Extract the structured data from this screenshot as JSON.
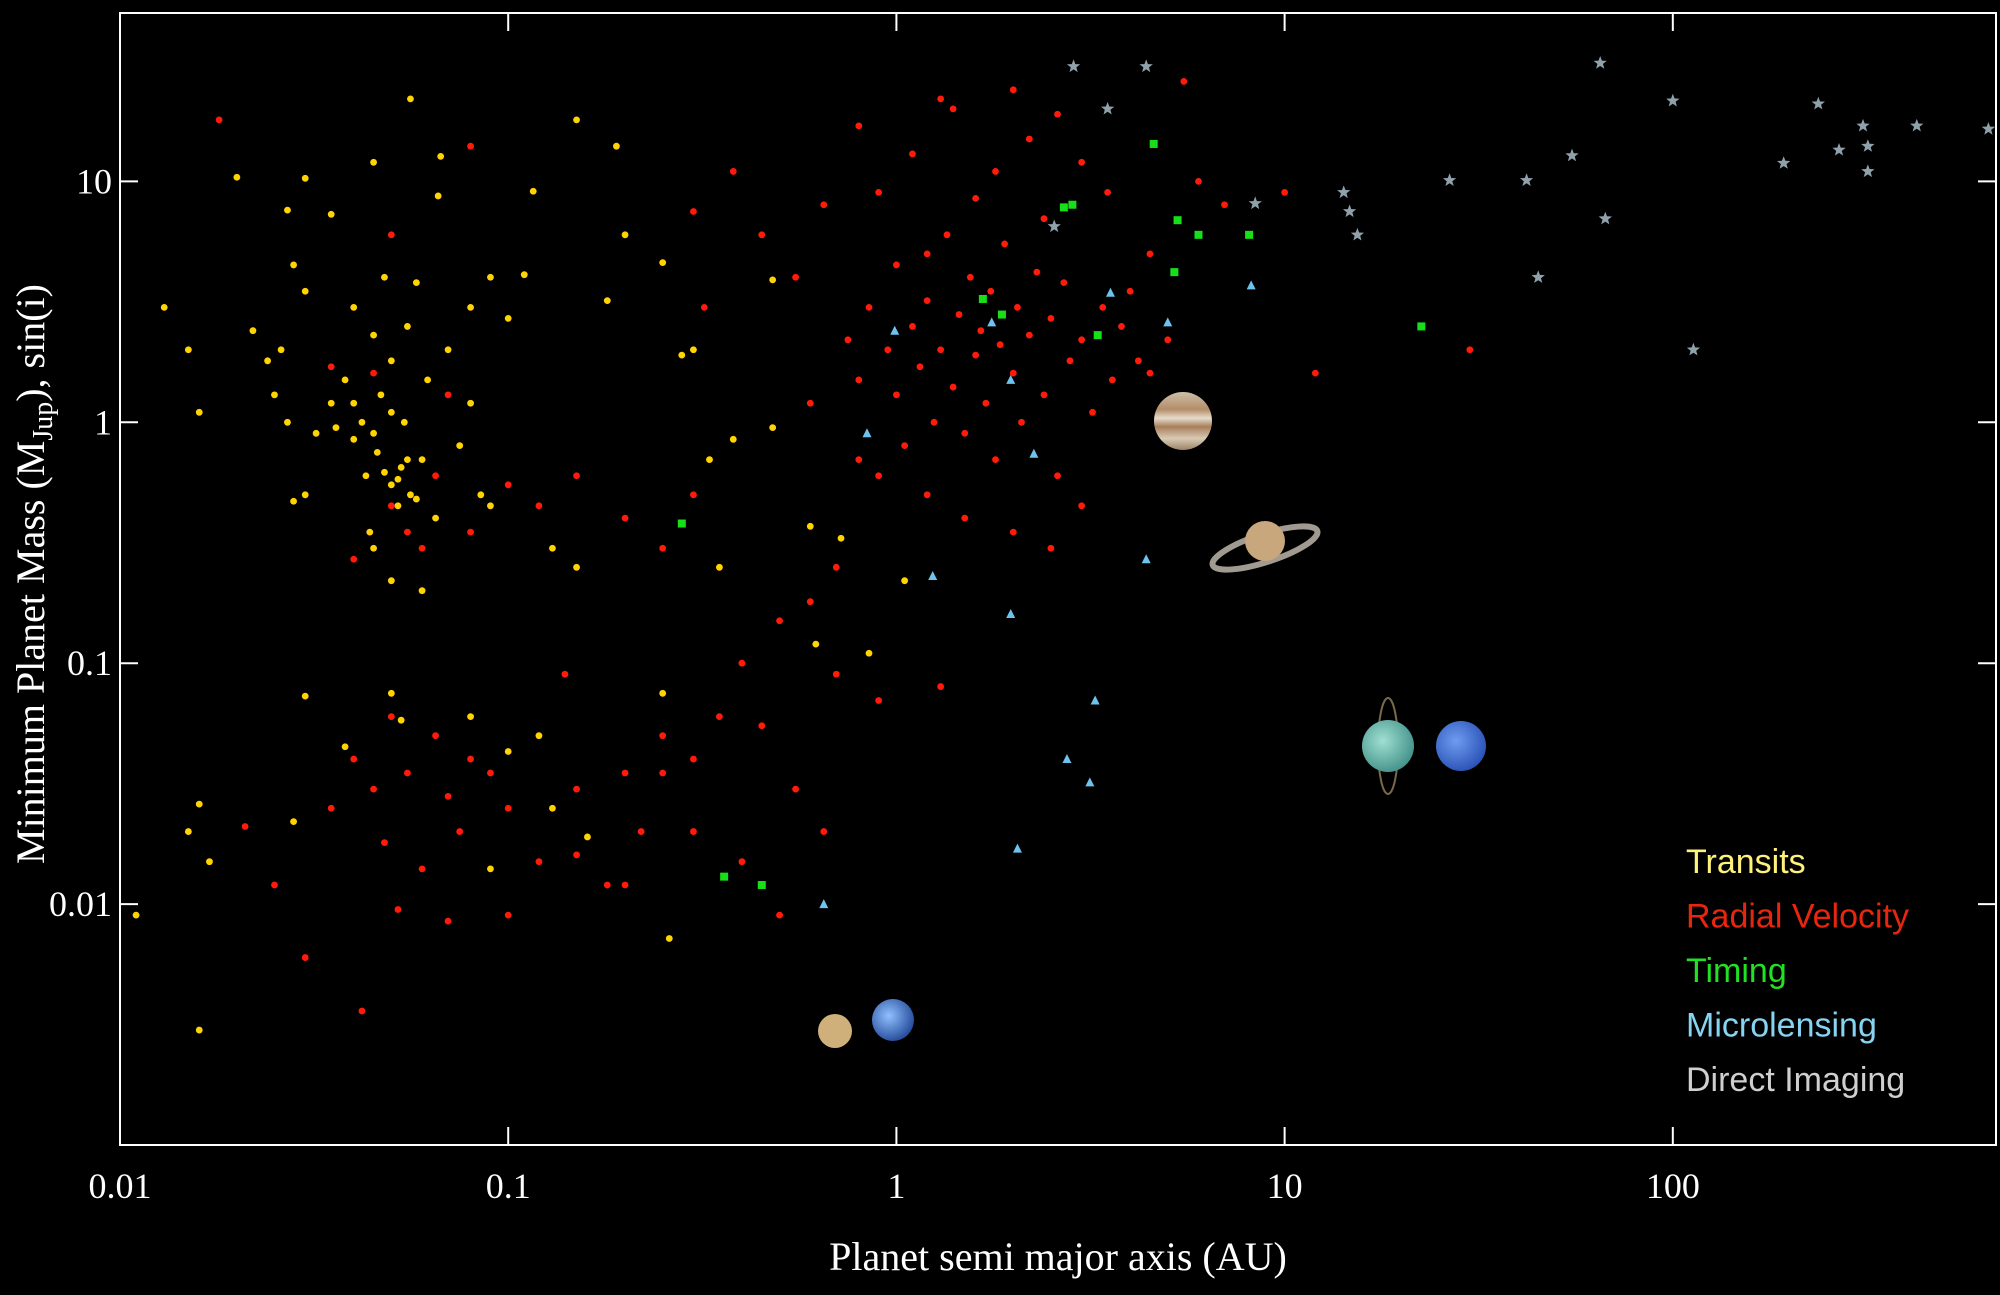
{
  "chart_data": {
    "type": "scatter",
    "xlabel": "Planet semi major axis (AU)",
    "ylabel": [
      "Minimum Planet Mass (M",
      "Jup",
      "),  sin(i)"
    ],
    "xscale": "log",
    "yscale": "log",
    "xlim": [
      0.01,
      680
    ],
    "ylim": [
      0.001,
      50
    ],
    "xticks": [
      0.01,
      0.1,
      1,
      10,
      100
    ],
    "yticks": [
      0.01,
      0.1,
      1,
      10
    ],
    "legend": "lower right",
    "series": [
      {
        "name": "Transits",
        "color": "#ffd400",
        "legend_color": "#fff27a",
        "marker": "circle",
        "x": [
          0.013,
          0.015,
          0.016,
          0.02,
          0.03,
          0.035,
          0.027,
          0.056,
          0.045,
          0.067,
          0.15,
          0.19,
          0.116,
          0.066,
          0.022,
          0.024,
          0.025,
          0.026,
          0.027,
          0.028,
          0.03,
          0.032,
          0.035,
          0.038,
          0.04,
          0.04,
          0.042,
          0.043,
          0.045,
          0.046,
          0.047,
          0.048,
          0.05,
          0.05,
          0.052,
          0.053,
          0.054,
          0.055,
          0.056,
          0.058,
          0.06,
          0.062,
          0.065,
          0.07,
          0.075,
          0.08,
          0.085,
          0.09,
          0.1,
          0.11,
          0.045,
          0.05,
          0.06,
          0.044,
          0.028,
          0.03,
          0.08,
          0.09,
          0.048,
          0.052,
          0.055,
          0.045,
          0.04,
          0.036,
          0.05,
          0.058,
          0.011,
          0.016,
          0.017,
          0.016,
          0.015,
          0.03,
          0.028,
          0.038,
          0.05,
          0.053,
          0.08,
          0.09,
          0.1,
          0.12,
          0.13,
          0.16,
          0.25,
          0.26,
          0.15,
          0.13,
          0.28,
          0.33,
          0.38,
          0.48,
          0.48,
          0.6,
          0.62,
          0.85,
          1.05,
          0.72,
          0.2,
          0.25,
          0.18,
          0.3,
          0.35
        ],
        "values": [
          3.0,
          2.0,
          1.1,
          10.4,
          10.3,
          7.3,
          7.6,
          22,
          12,
          12.7,
          18,
          14,
          9.1,
          8.7,
          2.4,
          1.8,
          1.3,
          2.0,
          1.0,
          4.5,
          3.5,
          0.9,
          1.2,
          1.5,
          0.85,
          3.0,
          1.0,
          0.6,
          2.3,
          0.75,
          1.3,
          4.0,
          0.55,
          1.8,
          0.45,
          0.65,
          1.0,
          2.5,
          0.5,
          3.8,
          0.7,
          1.5,
          0.4,
          2.0,
          0.8,
          1.2,
          0.5,
          0.45,
          2.7,
          4.1,
          0.3,
          0.22,
          0.2,
          0.35,
          0.47,
          0.5,
          3.0,
          4.0,
          0.62,
          0.58,
          0.7,
          0.9,
          1.2,
          0.95,
          1.1,
          0.48,
          0.009,
          0.026,
          0.015,
          0.003,
          0.02,
          0.073,
          0.022,
          0.045,
          0.075,
          0.058,
          0.06,
          0.014,
          0.043,
          0.05,
          0.025,
          0.019,
          0.075,
          0.0072,
          0.25,
          0.3,
          1.9,
          0.7,
          0.85,
          0.95,
          3.9,
          0.37,
          0.12,
          0.11,
          0.22,
          0.33,
          6,
          4.6,
          3.2,
          2.0,
          0.25
        ]
      },
      {
        "name": "Radial Velocity",
        "color": "#ff1a0a",
        "legend_color": "#e8260f",
        "marker": "circle",
        "x": [
          0.018,
          0.05,
          0.08,
          0.3,
          0.32,
          0.38,
          0.45,
          0.55,
          0.6,
          0.65,
          0.8,
          0.9,
          1.1,
          1.2,
          1.3,
          1.4,
          1.6,
          1.8,
          2.0,
          2.2,
          2.4,
          2.6,
          3.0,
          3.5,
          4.0,
          4.5,
          5.5,
          6,
          7,
          10,
          12,
          30,
          0.75,
          0.8,
          0.85,
          0.9,
          0.95,
          1.0,
          1.0,
          1.05,
          1.1,
          1.15,
          1.2,
          1.25,
          1.3,
          1.35,
          1.4,
          1.45,
          1.5,
          1.55,
          1.6,
          1.65,
          1.7,
          1.75,
          1.8,
          1.85,
          1.9,
          2.0,
          2.05,
          2.1,
          2.2,
          2.3,
          2.4,
          2.5,
          2.6,
          2.7,
          2.8,
          3.0,
          3.2,
          3.4,
          3.6,
          3.8,
          4.2,
          4.5,
          5,
          3.0,
          2.5,
          2.0,
          1.5,
          1.2,
          0.8,
          0.7,
          0.6,
          0.5,
          0.4,
          0.35,
          0.3,
          0.25,
          0.22,
          0.2,
          0.18,
          0.15,
          0.14,
          0.12,
          0.1,
          0.09,
          0.08,
          0.075,
          0.07,
          0.065,
          0.06,
          0.055,
          0.052,
          0.05,
          0.048,
          0.045,
          0.04,
          0.035,
          0.03,
          0.025,
          0.021,
          0.042,
          0.07,
          0.1,
          0.15,
          0.2,
          0.25,
          0.3,
          0.4,
          0.5,
          0.65,
          0.45,
          0.55,
          0.7,
          0.9,
          1.3,
          0.12,
          0.15,
          0.2,
          0.25,
          0.3,
          0.1,
          0.08,
          0.06,
          0.05,
          0.04,
          0.065,
          0.07,
          0.045,
          0.035,
          0.055
        ],
        "values": [
          18,
          6,
          14,
          7.5,
          3,
          11,
          6,
          4,
          1.2,
          8,
          17,
          9,
          13,
          5,
          22,
          20,
          8.5,
          11,
          24,
          15,
          7,
          19,
          12,
          9,
          3.5,
          5,
          26,
          10,
          8,
          9,
          1.6,
          2,
          2.2,
          1.5,
          3.0,
          0.6,
          2.0,
          1.3,
          4.5,
          0.8,
          2.5,
          1.7,
          3.2,
          1.0,
          2.0,
          6,
          1.4,
          2.8,
          0.9,
          4,
          1.9,
          2.4,
          1.2,
          3.5,
          0.7,
          2.1,
          5.5,
          1.6,
          3.0,
          1.0,
          2.3,
          4.2,
          1.3,
          2.7,
          0.6,
          3.8,
          1.8,
          2.2,
          1.1,
          3.0,
          1.5,
          2.5,
          1.8,
          1.6,
          2.2,
          0.45,
          0.3,
          0.35,
          0.4,
          0.5,
          0.7,
          0.25,
          0.18,
          0.15,
          0.1,
          0.06,
          0.04,
          0.05,
          0.02,
          0.035,
          0.012,
          0.03,
          0.09,
          0.015,
          0.025,
          0.035,
          0.04,
          0.02,
          0.028,
          0.05,
          0.014,
          0.035,
          0.0095,
          0.06,
          0.018,
          0.03,
          0.04,
          0.025,
          0.006,
          0.012,
          0.021,
          0.0036,
          0.0085,
          0.009,
          0.016,
          0.012,
          0.035,
          0.02,
          0.015,
          0.009,
          0.02,
          0.055,
          0.03,
          0.09,
          0.07,
          0.08,
          0.45,
          0.6,
          0.4,
          0.3,
          0.5,
          0.55,
          0.35,
          0.3,
          0.45,
          0.27,
          0.6,
          1.3,
          1.6,
          1.7,
          0.35
        ]
      },
      {
        "name": "Timing",
        "color": "#18e018",
        "legend_color": "#22e022",
        "marker": "square",
        "x": [
          4.6,
          2.84,
          2.7,
          5.3,
          6.0,
          8.1,
          5.2,
          1.67,
          1.87,
          3.3,
          22.5,
          0.28,
          0.36,
          0.45
        ],
        "values": [
          14.3,
          8.0,
          7.8,
          6.9,
          6.0,
          6.0,
          4.2,
          3.25,
          2.8,
          2.3,
          2.5,
          0.38,
          0.013,
          0.012
        ]
      },
      {
        "name": "Microlensing",
        "color": "#6ec3ee",
        "legend_color": "#86d3f2",
        "marker": "triangle",
        "x": [
          0.99,
          1.76,
          0.84,
          1.97,
          2.26,
          3.56,
          5.0,
          8.2,
          4.4,
          1.24,
          1.97,
          3.25,
          2.75,
          3.15,
          2.05,
          0.65
        ],
        "values": [
          2.4,
          2.6,
          0.9,
          1.5,
          0.74,
          3.45,
          2.6,
          3.7,
          0.27,
          0.23,
          0.16,
          0.07,
          0.04,
          0.032,
          0.017,
          0.01
        ]
      },
      {
        "name": "Direct Imaging",
        "color": "#8fa1ab",
        "legend_color": "#cfcfcf",
        "marker": "star",
        "x": [
          2.86,
          4.4,
          3.5,
          2.55,
          8.4,
          14.2,
          14.7,
          15.4,
          26.6,
          42,
          45,
          55,
          65,
          67,
          100,
          113,
          193,
          237,
          268,
          309,
          318,
          318,
          425,
          650
        ],
        "values": [
          30,
          30,
          20,
          6.5,
          8.1,
          9,
          7.5,
          6.0,
          10.1,
          10.1,
          4.0,
          12.8,
          31,
          7.0,
          21.6,
          2.0,
          11.9,
          21,
          13.5,
          17,
          14,
          11,
          17,
          16.5
        ]
      }
    ]
  }
}
